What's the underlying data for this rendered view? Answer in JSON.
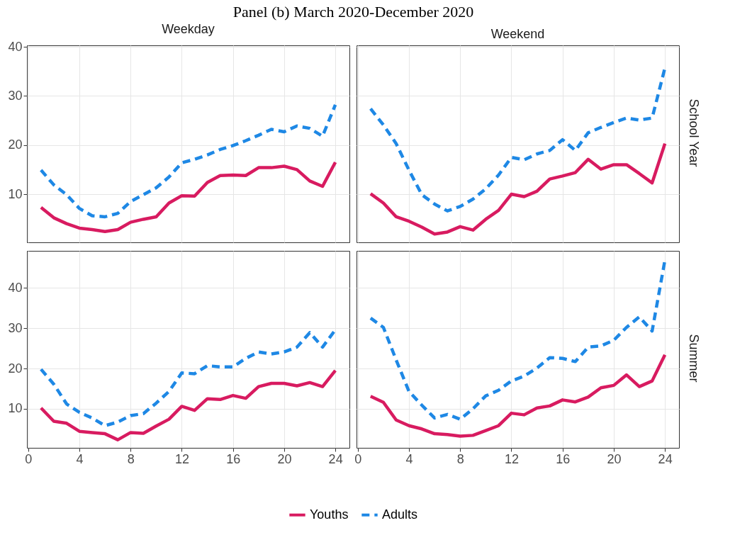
{
  "chart_data": [
    {
      "type": "line",
      "title": "Panel (b) March 2020-December 2020",
      "subtitle": "Weekday",
      "x": [
        1,
        2,
        3,
        4,
        5,
        6,
        7,
        8,
        9,
        10,
        11,
        12,
        13,
        14,
        15,
        16,
        17,
        18,
        19,
        20,
        21,
        22,
        23,
        24
      ],
      "xlim": [
        -0.1,
        25.1
      ],
      "xticks": [
        0,
        4,
        8,
        12,
        16,
        20,
        24
      ],
      "ylim": [
        0.2,
        40.3
      ],
      "yticks": [
        10,
        20,
        30,
        40
      ],
      "grid": true,
      "tick_labels": "y",
      "legend": "bottom",
      "series": [
        {
          "name": "Youths",
          "color": "#d81b60",
          "line_style": "solid",
          "values": [
            7.3,
            5.2,
            4.0,
            3.1,
            2.8,
            2.4,
            2.8,
            4.3,
            4.9,
            5.4,
            8.2,
            9.7,
            9.6,
            12.4,
            13.8,
            13.9,
            13.8,
            15.4,
            15.4,
            15.7,
            15.0,
            12.7,
            11.6,
            16.5
          ]
        },
        {
          "name": "Adults",
          "color": "#1e88e5",
          "line_style": "dashed",
          "values": [
            14.9,
            11.9,
            9.9,
            7.1,
            5.6,
            5.4,
            6.1,
            8.5,
            9.9,
            11.3,
            13.5,
            16.4,
            17.1,
            18.0,
            19.1,
            19.9,
            20.9,
            22.0,
            23.2,
            22.7,
            23.9,
            23.4,
            21.8,
            28.2
          ]
        }
      ]
    },
    {
      "type": "line",
      "subtitle": "Weekend",
      "y2label": "School Year",
      "x": [
        1,
        2,
        3,
        4,
        5,
        6,
        7,
        8,
        9,
        10,
        11,
        12,
        13,
        14,
        15,
        16,
        17,
        18,
        19,
        20,
        21,
        22,
        23,
        24
      ],
      "xlim": [
        -0.1,
        25.1
      ],
      "xticks": [
        0,
        4,
        8,
        12,
        16,
        20,
        24
      ],
      "ylim": [
        0.2,
        40.3
      ],
      "yticks": [
        10,
        20,
        30,
        40
      ],
      "grid": true,
      "tick_labels": false,
      "legend": "bottom",
      "series": [
        {
          "name": "Youths",
          "color": "#d81b60",
          "line_style": "solid",
          "values": [
            10.1,
            8.2,
            5.4,
            4.5,
            3.3,
            1.9,
            2.3,
            3.4,
            2.7,
            4.9,
            6.7,
            10.0,
            9.5,
            10.6,
            13.1,
            13.7,
            14.4,
            17.1,
            15.1,
            16.0,
            16.0,
            14.2,
            12.3,
            20.3
          ]
        },
        {
          "name": "Adults",
          "color": "#1e88e5",
          "line_style": "dashed",
          "values": [
            27.4,
            24.1,
            20.3,
            14.9,
            9.9,
            8.0,
            6.6,
            7.5,
            9.0,
            11.1,
            13.9,
            17.5,
            17.0,
            18.2,
            18.9,
            21.1,
            18.9,
            22.5,
            23.6,
            24.6,
            25.5,
            25.1,
            25.5,
            35.7
          ]
        }
      ]
    },
    {
      "type": "line",
      "x": [
        1,
        2,
        3,
        4,
        5,
        6,
        7,
        8,
        9,
        10,
        11,
        12,
        13,
        14,
        15,
        16,
        17,
        18,
        19,
        20,
        21,
        22,
        23,
        24
      ],
      "xlim": [
        -0.1,
        25.1
      ],
      "xticks": [
        0,
        4,
        8,
        12,
        16,
        20,
        24
      ],
      "ylim": [
        0.3,
        49.2
      ],
      "yticks": [
        10,
        20,
        30,
        40
      ],
      "grid": true,
      "legend": "bottom",
      "series": [
        {
          "name": "Youths",
          "color": "#d81b60",
          "line_style": "solid",
          "values": [
            10.2,
            6.9,
            6.4,
            4.4,
            4.1,
            3.8,
            2.3,
            4.1,
            3.9,
            5.7,
            7.4,
            10.6,
            9.6,
            12.5,
            12.3,
            13.3,
            12.6,
            15.5,
            16.3,
            16.3,
            15.7,
            16.5,
            15.5,
            19.5
          ]
        },
        {
          "name": "Adults",
          "color": "#1e88e5",
          "line_style": "dashed",
          "values": [
            19.8,
            16.1,
            11.2,
            9.1,
            7.7,
            5.8,
            6.7,
            8.3,
            8.8,
            11.4,
            14.3,
            18.9,
            18.7,
            20.7,
            20.4,
            20.4,
            22.5,
            24.1,
            23.6,
            24.1,
            25.3,
            28.9,
            25.3,
            29.6
          ]
        }
      ]
    },
    {
      "type": "line",
      "y2label": "Summer",
      "x": [
        1,
        2,
        3,
        4,
        5,
        6,
        7,
        8,
        9,
        10,
        11,
        12,
        13,
        14,
        15,
        16,
        17,
        18,
        19,
        20,
        21,
        22,
        23,
        24
      ],
      "xlim": [
        -0.1,
        25.1
      ],
      "xticks": [
        0,
        4,
        8,
        12,
        16,
        20,
        24
      ],
      "ylim": [
        0.3,
        49.2
      ],
      "yticks": [
        10,
        20,
        30,
        40
      ],
      "grid": true,
      "tick_labels": "x",
      "legend": "bottom",
      "series": [
        {
          "name": "Youths",
          "color": "#d81b60",
          "line_style": "solid",
          "values": [
            13.1,
            11.6,
            7.2,
            5.8,
            5.0,
            3.8,
            3.6,
            3.2,
            3.4,
            4.6,
            5.8,
            8.9,
            8.5,
            10.2,
            10.7,
            12.2,
            11.7,
            12.9,
            15.2,
            15.8,
            18.4,
            15.5,
            16.9,
            23.4
          ]
        },
        {
          "name": "Adults",
          "color": "#1e88e5",
          "line_style": "dashed",
          "values": [
            32.5,
            30.2,
            22.1,
            14.3,
            10.9,
            7.7,
            8.6,
            7.4,
            10.0,
            13.2,
            14.6,
            16.9,
            18.1,
            20.1,
            22.7,
            22.5,
            21.7,
            25.3,
            25.6,
            27.0,
            30.2,
            32.8,
            29.3,
            46.9
          ]
        }
      ]
    }
  ]
}
